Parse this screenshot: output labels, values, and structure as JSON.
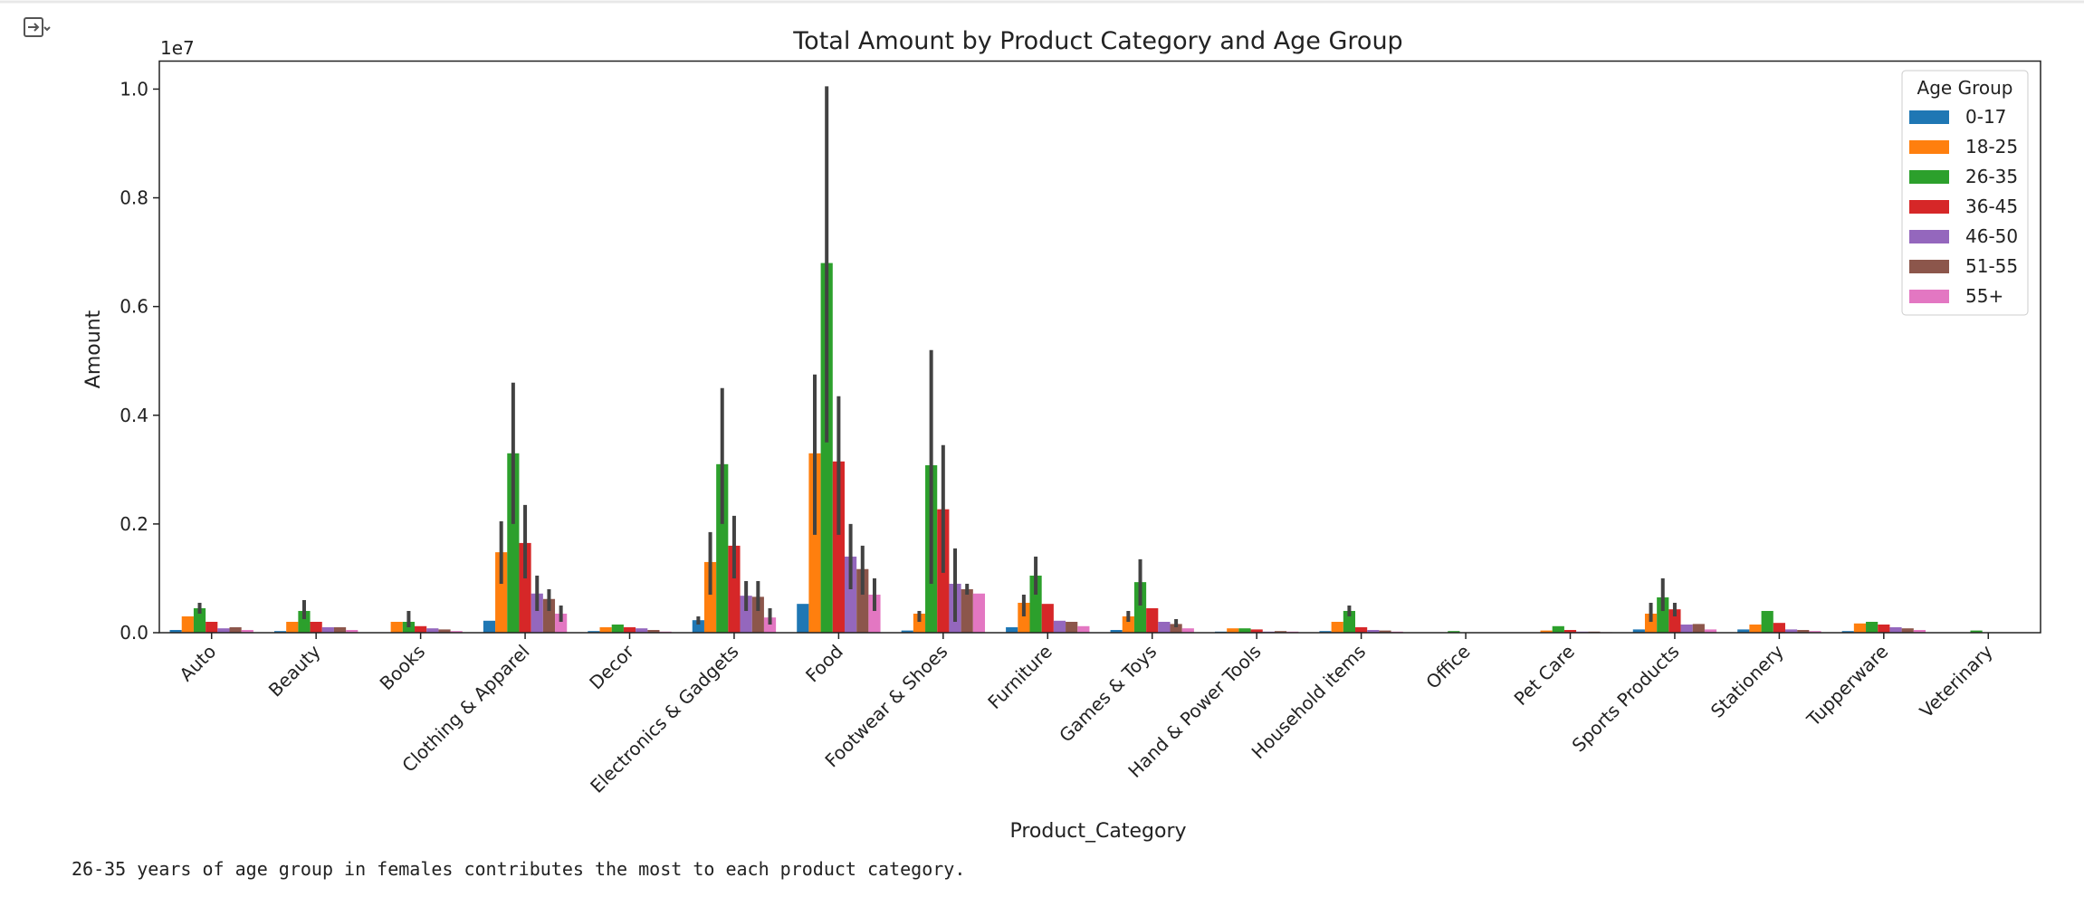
{
  "chart_data": {
    "type": "bar",
    "title": "Total Amount by Product Category and Age Group",
    "x_label": "Product_Category",
    "y_label": "Amount",
    "y_scale_label": "1e7",
    "legend_title": "Age Group",
    "legend_position": "upper right",
    "categories": [
      "Auto",
      "Beauty",
      "Books",
      "Clothing & Apparel",
      "Decor",
      "Electronics & Gadgets",
      "Food",
      "Footwear & Shoes",
      "Furniture",
      "Games & Toys",
      "Hand & Power Tools",
      "Household items",
      "Office",
      "Pet Care",
      "Sports Products",
      "Stationery",
      "Tupperware",
      "Veterinary"
    ],
    "series": [
      {
        "name": "0-17",
        "color": "#1f77b4",
        "values": [
          0.005,
          0.003,
          0,
          0.022,
          0.003,
          0.023,
          0.053,
          0.004,
          0.01,
          0.005,
          0.002,
          0.003,
          0,
          0,
          0.006,
          0.006,
          0.003,
          0
        ],
        "ci": [
          null,
          null,
          null,
          null,
          null,
          [
            0.015,
            0.03
          ],
          null,
          null,
          null,
          null,
          null,
          null,
          null,
          null,
          null,
          null,
          null,
          null
        ]
      },
      {
        "name": "18-25",
        "color": "#ff7f0e",
        "values": [
          0.03,
          0.02,
          0.02,
          0.148,
          0.01,
          0.13,
          0.33,
          0.035,
          0.055,
          0.03,
          0.008,
          0.02,
          0,
          0.004,
          0.035,
          0.015,
          0.017,
          0
        ],
        "ci": [
          null,
          null,
          null,
          [
            0.09,
            0.205
          ],
          null,
          [
            0.07,
            0.185
          ],
          [
            0.18,
            0.475
          ],
          [
            0.02,
            0.04
          ],
          [
            0.03,
            0.07
          ],
          [
            0.02,
            0.04
          ],
          null,
          null,
          null,
          null,
          [
            0.02,
            0.055
          ],
          null,
          null,
          null
        ]
      },
      {
        "name": "26-35",
        "color": "#2ca02c",
        "values": [
          0.045,
          0.04,
          0.02,
          0.33,
          0.015,
          0.31,
          0.68,
          0.308,
          0.105,
          0.093,
          0.008,
          0.04,
          0.003,
          0.012,
          0.065,
          0.04,
          0.02,
          0.004
        ],
        "ci": [
          [
            0.035,
            0.055
          ],
          [
            0.025,
            0.06
          ],
          [
            0.01,
            0.04
          ],
          [
            0.2,
            0.46
          ],
          null,
          [
            0.2,
            0.45
          ],
          [
            0.35,
            1.005
          ],
          [
            0.09,
            0.52
          ],
          [
            0.07,
            0.14
          ],
          [
            0.05,
            0.135
          ],
          null,
          [
            0.03,
            0.05
          ],
          null,
          null,
          [
            0.04,
            0.1
          ],
          null,
          null,
          null
        ]
      },
      {
        "name": "36-45",
        "color": "#d62728",
        "values": [
          0.02,
          0.02,
          0.012,
          0.165,
          0.01,
          0.16,
          0.315,
          0.227,
          0.053,
          0.045,
          0.006,
          0.01,
          0,
          0.005,
          0.043,
          0.018,
          0.015,
          0
        ],
        "ci": [
          null,
          null,
          null,
          [
            0.1,
            0.235
          ],
          null,
          [
            0.1,
            0.215
          ],
          [
            0.18,
            0.435
          ],
          [
            0.11,
            0.345
          ],
          null,
          null,
          null,
          null,
          null,
          null,
          [
            0.03,
            0.055
          ],
          null,
          null,
          null
        ]
      },
      {
        "name": "46-50",
        "color": "#9467bd",
        "values": [
          0.008,
          0.01,
          0.008,
          0.072,
          0.008,
          0.068,
          0.14,
          0.09,
          0.022,
          0.02,
          0.002,
          0.005,
          0,
          0.002,
          0.015,
          0.006,
          0.01,
          0
        ],
        "ci": [
          null,
          null,
          null,
          [
            0.04,
            0.105
          ],
          null,
          [
            0.04,
            0.095
          ],
          [
            0.08,
            0.2
          ],
          [
            0.02,
            0.155
          ],
          null,
          null,
          null,
          null,
          null,
          null,
          null,
          null,
          null,
          null
        ]
      },
      {
        "name": "51-55",
        "color": "#8c564b",
        "values": [
          0.01,
          0.01,
          0.006,
          0.062,
          0.005,
          0.066,
          0.117,
          0.08,
          0.02,
          0.016,
          0.003,
          0.004,
          0,
          0.002,
          0.016,
          0.005,
          0.008,
          0
        ],
        "ci": [
          null,
          null,
          null,
          [
            0.04,
            0.08
          ],
          null,
          [
            0.04,
            0.095
          ],
          [
            0.07,
            0.16
          ],
          [
            0.07,
            0.09
          ],
          null,
          [
            0.01,
            0.025
          ],
          null,
          null,
          null,
          null,
          null,
          null,
          null,
          null
        ]
      },
      {
        "name": "55+",
        "color": "#e377c2",
        "values": [
          0.005,
          0.005,
          0.003,
          0.035,
          0.002,
          0.028,
          0.07,
          0.072,
          0.012,
          0.008,
          0.002,
          0.002,
          0,
          0.001,
          0.006,
          0.003,
          0.005,
          0
        ],
        "ci": [
          null,
          null,
          null,
          [
            0.02,
            0.05
          ],
          null,
          [
            0.015,
            0.045
          ],
          [
            0.04,
            0.1
          ],
          null,
          null,
          null,
          null,
          null,
          null,
          null,
          null,
          null,
          null,
          null
        ]
      }
    ],
    "ylim": [
      0,
      1.0515
    ],
    "yticks": [
      {
        "value": 0,
        "label": "0.0"
      },
      0.2,
      0.4,
      0.6,
      0.8,
      {
        "value": 1,
        "label": "1.0"
      }
    ]
  },
  "note": "26-35 years of age group in females contributes the most to each product category."
}
